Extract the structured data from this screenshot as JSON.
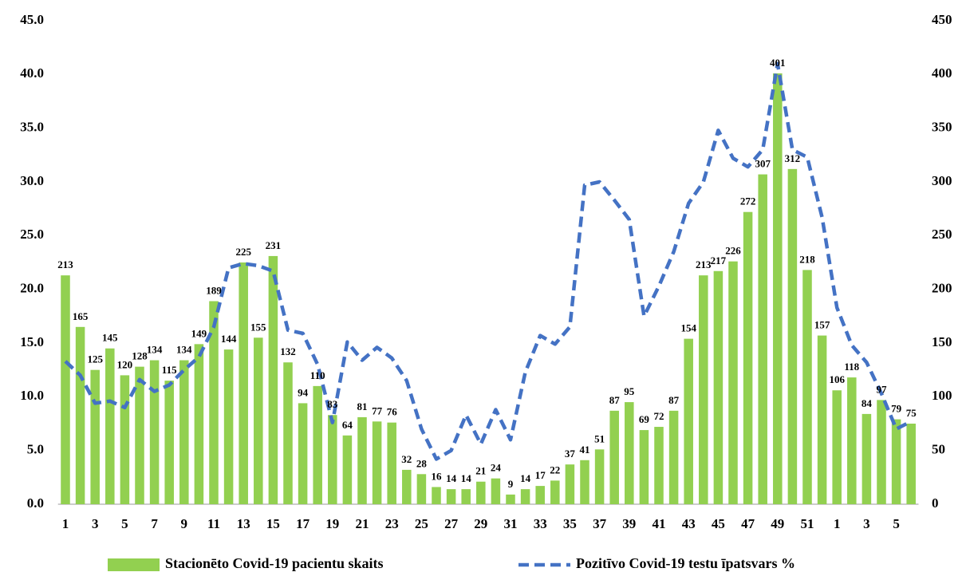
{
  "chart_data": {
    "type": "bar",
    "categories": [
      "1",
      null,
      "3",
      null,
      "5",
      null,
      "7",
      null,
      "9",
      null,
      "11",
      null,
      "13",
      null,
      "15",
      null,
      "17",
      null,
      "19",
      null,
      "21",
      null,
      "23",
      null,
      "25",
      null,
      "27",
      null,
      "29",
      null,
      "31",
      null,
      "33",
      null,
      "35",
      null,
      "37",
      null,
      "39",
      null,
      "41",
      null,
      "43",
      null,
      "45",
      null,
      "47",
      null,
      "49",
      null,
      "51",
      null,
      "1",
      null,
      "3",
      null,
      "5",
      null
    ],
    "series": [
      {
        "name": "Stacionēto Covid-19 pacientu skaits",
        "type": "bar",
        "axis": "y2",
        "color": "#92d050",
        "values": [
          213,
          165,
          125,
          145,
          120,
          128,
          134,
          115,
          134,
          149,
          189,
          144,
          225,
          155,
          231,
          132,
          94,
          110,
          83,
          64,
          81,
          77,
          76,
          32,
          28,
          16,
          14,
          14,
          21,
          24,
          9,
          14,
          17,
          22,
          37,
          41,
          51,
          87,
          95,
          69,
          72,
          87,
          154,
          213,
          217,
          226,
          272,
          307,
          401,
          312,
          218,
          157,
          106,
          118,
          84,
          97,
          79,
          75
        ]
      },
      {
        "name": "Pozitīvo Covid-19 testu īpatsvars %",
        "type": "line",
        "color": "#4472c4",
        "dashed": true,
        "values": [
          13.3,
          12.0,
          9.4,
          9.6,
          9.0,
          11.6,
          10.5,
          11.1,
          12.5,
          13.7,
          16.5,
          22.0,
          22.4,
          22.2,
          21.7,
          16.2,
          15.9,
          13.0,
          7.6,
          15.1,
          13.4,
          14.6,
          13.6,
          11.5,
          7.0,
          4.2,
          5.0,
          8.3,
          5.6,
          8.8,
          6.0,
          12.3,
          15.7,
          14.9,
          16.5,
          29.7,
          30.0,
          28.3,
          26.5,
          17.5,
          20.3,
          23.5,
          28.0,
          30.0,
          34.8,
          32.2,
          31.4,
          33.0,
          41.0,
          33.0,
          32.3,
          26.7,
          18.3,
          14.8,
          13.2,
          10.3,
          7.0,
          7.7
        ]
      }
    ],
    "ylim": [
      0,
      45
    ],
    "yticks": [
      {
        "value": 0,
        "label": "0.0"
      },
      {
        "value": 5,
        "label": "5.0"
      },
      {
        "value": 10,
        "label": "10.0"
      },
      {
        "value": 15,
        "label": "15.0"
      },
      {
        "value": 20,
        "label": "20.0"
      },
      {
        "value": 25,
        "label": "25.0"
      },
      {
        "value": 30,
        "label": "30.0"
      },
      {
        "value": 35,
        "label": "35.0"
      },
      {
        "value": 40,
        "label": "40.0"
      },
      {
        "value": 45,
        "label": "45.0"
      }
    ],
    "y2lim": [
      0,
      450
    ],
    "y2ticks": [
      0,
      50,
      100,
      150,
      200,
      250,
      300,
      350,
      400,
      450
    ],
    "data_labels": true,
    "grid": false,
    "legend": "bottom"
  }
}
